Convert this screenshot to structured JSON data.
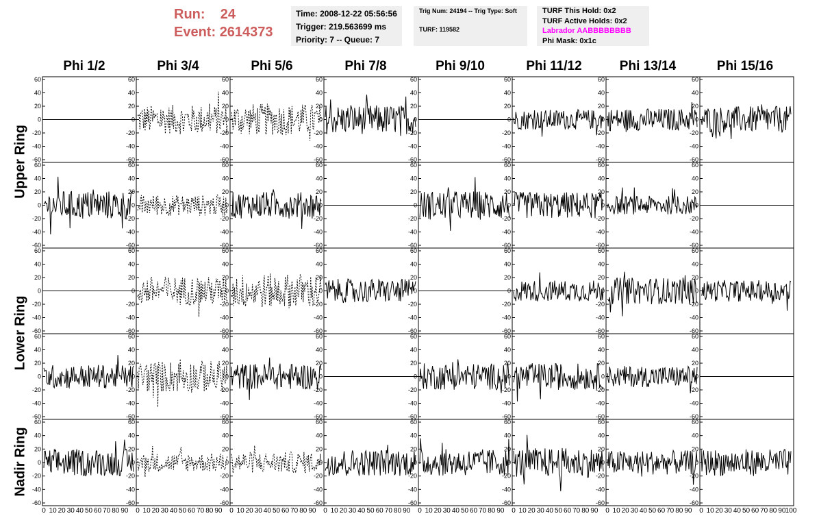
{
  "run": {
    "run_label": "Run:",
    "run_value": "24",
    "event_label": "Event:",
    "event_value": "2614373"
  },
  "time_box": {
    "time": "Time: 2008-12-22 05:56:56",
    "trigger": "Trigger: 219.563699 ms",
    "priority": "Priority: 7 -- Queue: 7"
  },
  "trig_box": {
    "trig": "Trig Num: 24194 -- Trig Type: Soft",
    "turf": "TURF: 119582"
  },
  "turf_box": {
    "this_hold": "TURF This Hold: 0x2",
    "active_holds": "TURF Active Holds: 0x2",
    "labrador": "Labrador AABBBBBBBB",
    "phi_mask": "Phi Mask: 0x1c"
  },
  "colors": {
    "run_text": "#cd5c5c",
    "labrador_text": "#ff00ff",
    "box_bg": "#efefef"
  },
  "phi_titles": [
    "Phi 1/2",
    "Phi 3/4",
    "Phi 5/6",
    "Phi 7/8",
    "Phi 9/10",
    "Phi 11/12",
    "Phi 13/14",
    "Phi 15/16"
  ],
  "ring_titles": [
    "Upper Ring",
    "Lower Ring",
    "Nadir Ring"
  ],
  "chart_data": {
    "type": "line",
    "description_grid": "8 columns x 5 rows of waveform panels",
    "ylim": [
      -60,
      60
    ],
    "y_ticks": [
      "60",
      "40",
      "20",
      "0",
      "-20",
      "-40",
      "-60"
    ],
    "xlim": [
      0,
      100
    ],
    "x_ticks": [
      "0",
      "10",
      "20",
      "30",
      "40",
      "50",
      "60",
      "70",
      "80",
      "90",
      "100"
    ],
    "rows": [
      {
        "ring": "Upper Ring",
        "panels": [
          {
            "style": "flat",
            "amp": 0
          },
          {
            "style": "dashed",
            "amp": 22
          },
          {
            "style": "dashed",
            "amp": 24
          },
          {
            "style": "solid",
            "amp": 22
          },
          {
            "style": "flat",
            "amp": 0
          },
          {
            "style": "solid",
            "amp": 15
          },
          {
            "style": "solid",
            "amp": 17
          },
          {
            "style": "solid",
            "amp": 20
          }
        ]
      },
      {
        "ring": "Upper Ring",
        "panels": [
          {
            "style": "solid",
            "amp": 22
          },
          {
            "style": "dashed",
            "amp": 16
          },
          {
            "style": "solid",
            "amp": 20
          },
          {
            "style": "flat",
            "amp": 0
          },
          {
            "style": "solid",
            "amp": 22
          },
          {
            "style": "solid",
            "amp": 20
          },
          {
            "style": "solid",
            "amp": 14
          },
          {
            "style": "flat",
            "amp": 0
          }
        ]
      },
      {
        "ring": "Lower Ring",
        "panels": [
          {
            "style": "flat",
            "amp": 0
          },
          {
            "style": "dashed",
            "amp": 22
          },
          {
            "style": "dashed",
            "amp": 26
          },
          {
            "style": "solid",
            "amp": 18
          },
          {
            "style": "flat",
            "amp": 0
          },
          {
            "style": "solid",
            "amp": 16
          },
          {
            "style": "solid",
            "amp": 20
          },
          {
            "style": "solid",
            "amp": 16
          }
        ]
      },
      {
        "ring": "Lower Ring",
        "panels": [
          {
            "style": "solid",
            "amp": 18
          },
          {
            "style": "dashed",
            "amp": 24
          },
          {
            "style": "solid",
            "amp": 20
          },
          {
            "style": "flat",
            "amp": 0
          },
          {
            "style": "solid",
            "amp": 20
          },
          {
            "style": "solid",
            "amp": 20
          },
          {
            "style": "solid",
            "amp": 16
          },
          {
            "style": "flat",
            "amp": 0
          }
        ]
      },
      {
        "ring": "Nadir Ring",
        "panels": [
          {
            "style": "solid",
            "amp": 20
          },
          {
            "style": "dashed",
            "amp": 14
          },
          {
            "style": "dashed",
            "amp": 16
          },
          {
            "style": "solid",
            "amp": 20
          },
          {
            "style": "solid",
            "amp": 20
          },
          {
            "style": "solid",
            "amp": 22
          },
          {
            "style": "solid",
            "amp": 18
          },
          {
            "style": "solid",
            "amp": 20
          }
        ]
      }
    ]
  }
}
